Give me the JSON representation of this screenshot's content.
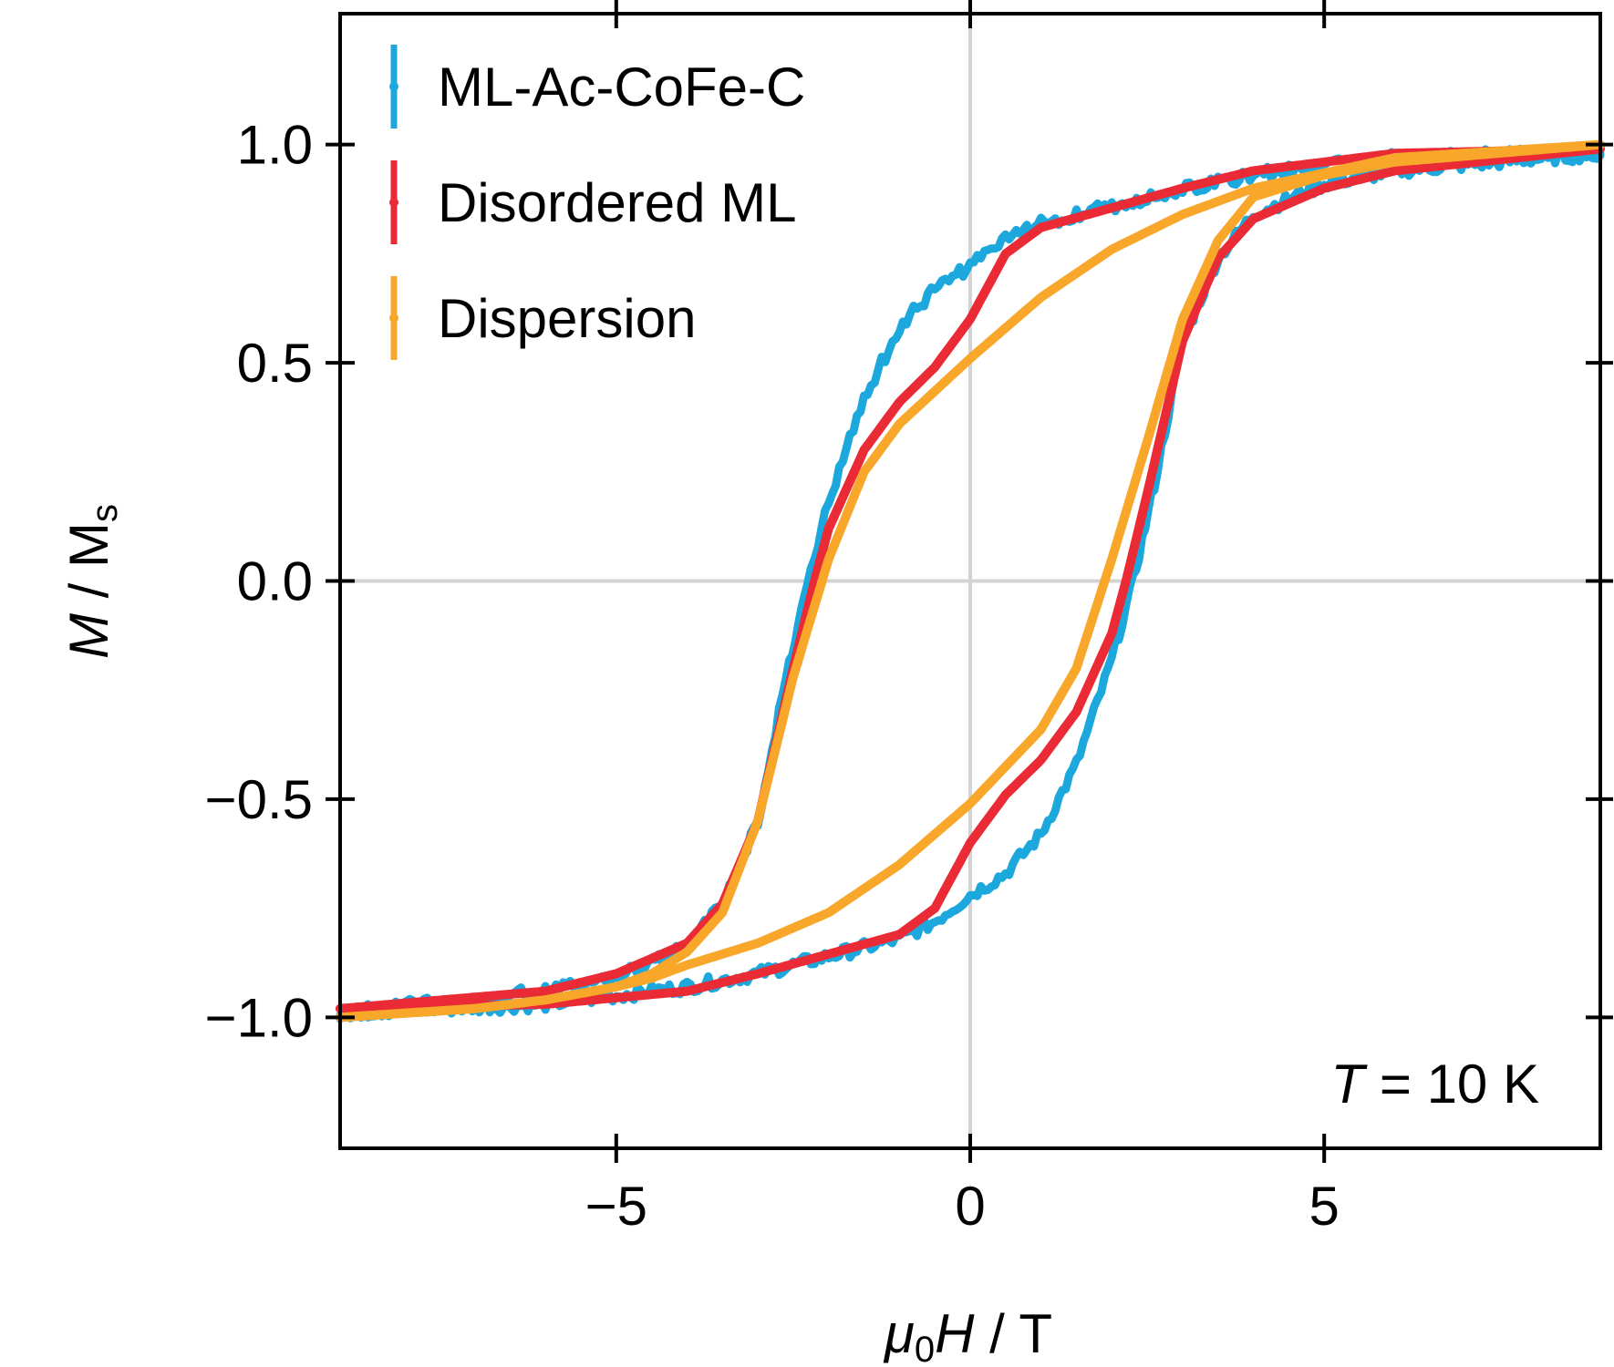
{
  "chart_data": {
    "type": "line",
    "xlabel_parts": [
      "μ",
      "0",
      "H",
      " / T"
    ],
    "ylabel_parts": [
      "M",
      " / M",
      "s"
    ],
    "xlim": [
      -8.9,
      8.9
    ],
    "ylim": [
      -1.3,
      1.3
    ],
    "xticks": [
      -5,
      0,
      5
    ],
    "xtick_labels": [
      "−5",
      "0",
      "5"
    ],
    "yticks": [
      -1.0,
      -0.5,
      0.0,
      0.5,
      1.0
    ],
    "ytick_labels": [
      "−1.0",
      "−0.5",
      "0.0",
      "0.5",
      "1.0"
    ],
    "grid": "lines at x = 0 and y = 0",
    "legend_position": "top-left",
    "annotation_parts": [
      "T",
      " = 10 K"
    ],
    "series": [
      {
        "name": "ML-Ac-CoFe-C",
        "color": "#1ca8dd",
        "noisy": true,
        "branch_descending": {
          "x": [
            8.9,
            6,
            4,
            3,
            1,
            0.5,
            0,
            -0.5,
            -1,
            -1.5,
            -2,
            -2.3,
            -2.6,
            -3,
            -3.5,
            -4,
            -5,
            -6,
            -8.9
          ],
          "y": [
            0.98,
            0.97,
            0.93,
            0.9,
            0.82,
            0.78,
            0.72,
            0.67,
            0.58,
            0.42,
            0.18,
            0.0,
            -0.22,
            -0.55,
            -0.74,
            -0.84,
            -0.91,
            -0.94,
            -0.99
          ]
        },
        "branch_ascending": {
          "x": [
            -8.9,
            -6,
            -4,
            -3,
            -1,
            -0.5,
            0,
            0.5,
            1,
            1.5,
            2,
            2.3,
            2.6,
            3,
            3.5,
            4,
            5,
            6,
            8.9
          ],
          "y": [
            -0.99,
            -0.97,
            -0.93,
            -0.9,
            -0.82,
            -0.78,
            -0.72,
            -0.67,
            -0.58,
            -0.42,
            -0.18,
            0.0,
            0.22,
            0.55,
            0.74,
            0.84,
            0.91,
            0.94,
            0.98
          ]
        }
      },
      {
        "name": "Disordered ML",
        "color": "#ea2a35",
        "noisy": false,
        "branch_descending": {
          "x": [
            8.9,
            6,
            4,
            3,
            1,
            0.5,
            0,
            -0.5,
            -1,
            -1.5,
            -2,
            -2.2,
            -2.5,
            -3,
            -3.5,
            -4,
            -5,
            -6,
            -8.9
          ],
          "y": [
            0.99,
            0.98,
            0.94,
            0.9,
            0.81,
            0.75,
            0.6,
            0.49,
            0.41,
            0.3,
            0.12,
            0.0,
            -0.2,
            -0.55,
            -0.74,
            -0.83,
            -0.9,
            -0.94,
            -0.98
          ]
        },
        "branch_ascending": {
          "x": [
            -8.9,
            -6,
            -4,
            -3,
            -1,
            -0.5,
            0,
            0.5,
            1,
            1.5,
            2,
            2.2,
            2.5,
            3,
            3.5,
            4,
            5,
            6,
            8.9
          ],
          "y": [
            -0.98,
            -0.97,
            -0.94,
            -0.9,
            -0.81,
            -0.75,
            -0.6,
            -0.49,
            -0.41,
            -0.3,
            -0.12,
            0.0,
            0.2,
            0.55,
            0.74,
            0.83,
            0.9,
            0.94,
            0.99
          ]
        }
      },
      {
        "name": "Dispersion",
        "color": "#f8a72a",
        "noisy": false,
        "branch_descending": {
          "x": [
            8.9,
            6,
            4,
            3,
            2,
            1,
            0,
            -1,
            -1.5,
            -2,
            -2.5,
            -3,
            -3.5,
            -4,
            -4.5,
            -5,
            -6,
            -7,
            -8.9
          ],
          "y": [
            1.0,
            0.97,
            0.9,
            0.84,
            0.76,
            0.65,
            0.51,
            0.36,
            0.25,
            0.05,
            -0.22,
            -0.55,
            -0.76,
            -0.85,
            -0.9,
            -0.93,
            -0.96,
            -0.98,
            -1.0
          ]
        },
        "branch_ascending": {
          "x": [
            -8.9,
            -7,
            -6,
            -5,
            -4.5,
            -4,
            -3,
            -2,
            -1,
            0,
            1,
            1.5,
            2,
            2.5,
            3,
            3.5,
            4,
            5,
            6,
            8.9
          ],
          "y": [
            -1.0,
            -0.98,
            -0.96,
            -0.93,
            -0.91,
            -0.88,
            -0.83,
            -0.76,
            -0.65,
            -0.51,
            -0.34,
            -0.2,
            0.05,
            0.32,
            0.6,
            0.78,
            0.88,
            0.93,
            0.96,
            1.0
          ]
        }
      }
    ]
  }
}
